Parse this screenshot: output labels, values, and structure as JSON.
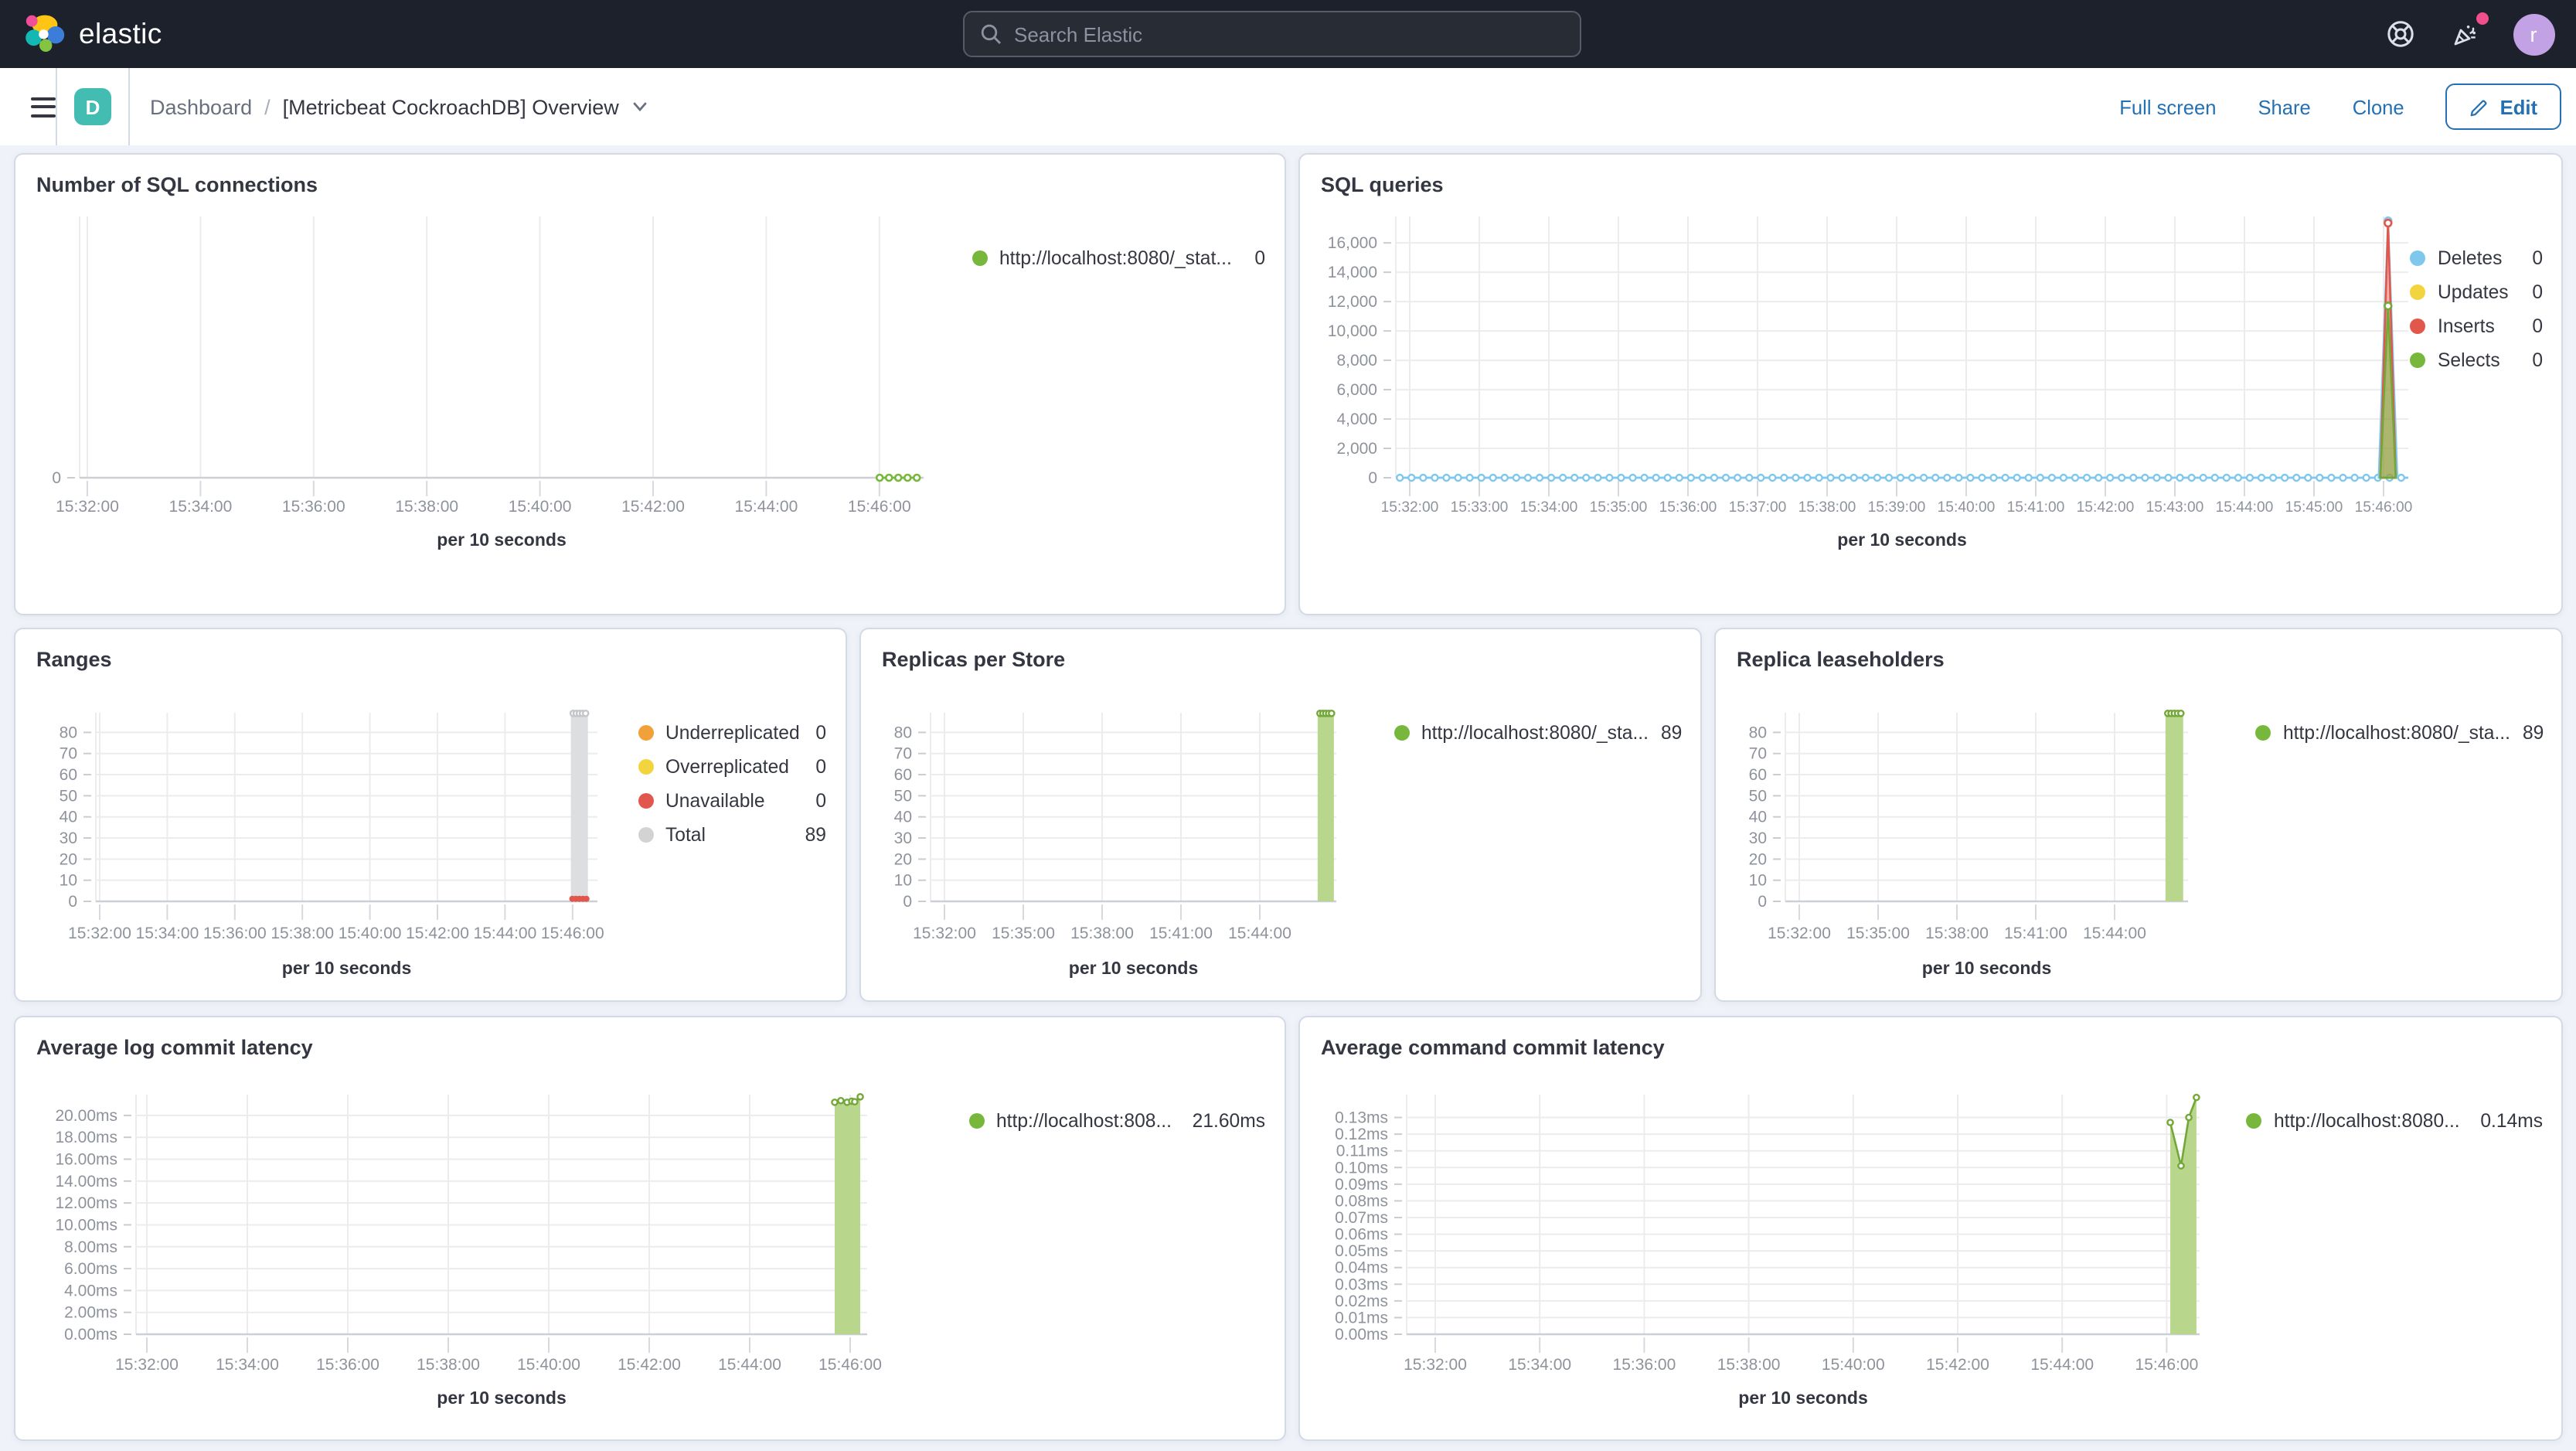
{
  "header": {
    "logo_text": "elastic",
    "search_placeholder": "Search Elastic",
    "avatar_letter": "r"
  },
  "toolbar": {
    "dashboard_badge": "D",
    "breadcrumb_root": "Dashboard",
    "breadcrumb_sep": "/",
    "breadcrumb_current": "[Metricbeat CockroachDB] Overview",
    "action_fullscreen": "Full screen",
    "action_share": "Share",
    "action_clone": "Clone",
    "edit_label": "Edit"
  },
  "panels": [
    {
      "title": "Number of SQL connections",
      "legend": [
        {
          "label": "http://localhost:8080/_stat...",
          "value": "0",
          "color": "#77b83c"
        }
      ],
      "chart": {
        "type": "line",
        "x_label": "per 10 seconds",
        "x_ticks": [
          "15:32:00",
          "15:34:00",
          "15:36:00",
          "15:38:00",
          "15:40:00",
          "15:42:00",
          "15:44:00",
          "15:46:00"
        ],
        "y_ticks": [
          {
            "label": "0",
            "v": 0
          }
        ],
        "ylim": [
          0,
          8
        ],
        "series": [
          {
            "name": "connections",
            "type": "dotline",
            "color": "#77b83c",
            "points": [
              [
                0.948,
                0
              ],
              [
                0.959,
                0
              ],
              [
                0.97,
                0
              ],
              [
                0.981,
                0
              ],
              [
                0.992,
                0
              ]
            ]
          }
        ]
      }
    },
    {
      "title": "SQL queries",
      "legend": [
        {
          "label": "Deletes",
          "value": "0",
          "color": "#7fc8ec"
        },
        {
          "label": "Updates",
          "value": "0",
          "color": "#f2d53e"
        },
        {
          "label": "Inserts",
          "value": "0",
          "color": "#e2574b"
        },
        {
          "label": "Selects",
          "value": "0",
          "color": "#77b83c"
        }
      ],
      "chart": {
        "type": "area",
        "x_label": "per 10 seconds",
        "x_ticks": [
          "15:32:00",
          "15:33:00",
          "15:34:00",
          "15:35:00",
          "15:36:00",
          "15:37:00",
          "15:38:00",
          "15:39:00",
          "15:40:00",
          "15:41:00",
          "15:42:00",
          "15:43:00",
          "15:44:00",
          "15:45:00",
          "15:46:00"
        ],
        "y_ticks": [
          {
            "label": "0",
            "v": 0
          },
          {
            "label": "2,000",
            "v": 2000
          },
          {
            "label": "4,000",
            "v": 4000
          },
          {
            "label": "6,000",
            "v": 6000
          },
          {
            "label": "8,000",
            "v": 8000
          },
          {
            "label": "10,000",
            "v": 10000
          },
          {
            "label": "12,000",
            "v": 12000
          },
          {
            "label": "14,000",
            "v": 14000
          },
          {
            "label": "16,000",
            "v": 16000
          }
        ],
        "ylim": [
          0,
          17800
        ],
        "series": [
          {
            "name": "Deletes baseline",
            "type": "zeroline",
            "color": "#7fc8ec",
            "step": 0.0115
          },
          {
            "name": "Deletes spike",
            "type": "spike",
            "cx": 0.98,
            "hw": 0.0092,
            "peak": 17500,
            "color": "#7fc8ec",
            "fill": "none"
          },
          {
            "name": "Inserts spike",
            "type": "spike",
            "cx": 0.98,
            "hw": 0.0076,
            "peak": 17350,
            "color": "#e2574b",
            "fill": "rgba(226,87,75,0.45)"
          },
          {
            "name": "Selects spike",
            "type": "spike",
            "cx": 0.98,
            "hw": 0.0076,
            "peak": 11700,
            "color": "#73a839",
            "fill": "rgba(126,184,68,0.6)"
          }
        ]
      }
    },
    {
      "title": "Ranges",
      "legend": [
        {
          "label": "Underreplicated",
          "value": "0",
          "color": "#f0a13a"
        },
        {
          "label": "Overreplicated",
          "value": "0",
          "color": "#f2d53e"
        },
        {
          "label": "Unavailable",
          "value": "0",
          "color": "#e2574b"
        },
        {
          "label": "Total",
          "value": "89",
          "color": "#d3d3d3"
        }
      ],
      "chart": {
        "type": "bar",
        "x_label": "per 10 seconds",
        "x_ticks": [
          "15:32:00",
          "15:34:00",
          "15:36:00",
          "15:38:00",
          "15:40:00",
          "15:42:00",
          "15:44:00",
          "15:46:00"
        ],
        "y_ticks": [
          {
            "label": "0",
            "v": 0
          },
          {
            "label": "10",
            "v": 10
          },
          {
            "label": "20",
            "v": 20
          },
          {
            "label": "30",
            "v": 30
          },
          {
            "label": "40",
            "v": 40
          },
          {
            "label": "50",
            "v": 50
          },
          {
            "label": "60",
            "v": 60
          },
          {
            "label": "70",
            "v": 70
          },
          {
            "label": "80",
            "v": 80
          }
        ],
        "ylim": [
          0,
          89.3
        ],
        "series": [
          {
            "name": "Total",
            "type": "bar",
            "cx": 0.964,
            "hw": 0.017,
            "top": 89,
            "fill": "#dcdee0",
            "markerColor": "#c4c6c9",
            "markers": 5
          },
          {
            "name": "Unavailable",
            "type": "dots",
            "cx": 0.964,
            "hw": 0.014,
            "n": 5,
            "y": 1.2,
            "color": "#e2574b"
          }
        ]
      }
    },
    {
      "title": "Replicas per Store",
      "legend": [
        {
          "label": "http://localhost:8080/_sta...",
          "value": "89",
          "color": "#77b83c"
        }
      ],
      "chart": {
        "type": "bar",
        "x_label": "per 10 seconds",
        "x_ticks": [
          "15:32:00",
          "15:35:00",
          "15:38:00",
          "15:41:00",
          "15:44:00"
        ],
        "y_ticks": [
          {
            "label": "0",
            "v": 0
          },
          {
            "label": "10",
            "v": 10
          },
          {
            "label": "20",
            "v": 20
          },
          {
            "label": "30",
            "v": 30
          },
          {
            "label": "40",
            "v": 40
          },
          {
            "label": "50",
            "v": 50
          },
          {
            "label": "60",
            "v": 60
          },
          {
            "label": "70",
            "v": 70
          },
          {
            "label": "80",
            "v": 80
          }
        ],
        "ylim": [
          0,
          89.3
        ],
        "series": [
          {
            "name": "replicas",
            "type": "bar",
            "cx": 0.974,
            "hw": 0.02,
            "top": 89,
            "fill": "#b8d78d",
            "markerColor": "#73a839",
            "markers": 5
          }
        ]
      }
    },
    {
      "title": "Replica leaseholders",
      "legend": [
        {
          "label": "http://localhost:8080/_sta...",
          "value": "89",
          "color": "#77b83c"
        }
      ],
      "chart": {
        "type": "bar",
        "x_label": "per 10 seconds",
        "x_ticks": [
          "15:32:00",
          "15:35:00",
          "15:38:00",
          "15:41:00",
          "15:44:00"
        ],
        "y_ticks": [
          {
            "label": "0",
            "v": 0
          },
          {
            "label": "10",
            "v": 10
          },
          {
            "label": "20",
            "v": 20
          },
          {
            "label": "30",
            "v": 30
          },
          {
            "label": "40",
            "v": 40
          },
          {
            "label": "50",
            "v": 50
          },
          {
            "label": "60",
            "v": 60
          },
          {
            "label": "70",
            "v": 70
          },
          {
            "label": "80",
            "v": 80
          }
        ],
        "ylim": [
          0,
          89.3
        ],
        "series": [
          {
            "name": "leaseholders",
            "type": "bar",
            "cx": 0.966,
            "hw": 0.022,
            "top": 89,
            "fill": "#b8d78d",
            "markerColor": "#73a839",
            "markers": 5
          }
        ]
      }
    },
    {
      "title": "Average log commit latency",
      "legend": [
        {
          "label": "http://localhost:808...",
          "value": "21.60ms",
          "color": "#77b83c"
        }
      ],
      "chart": {
        "type": "area",
        "x_label": "per 10 seconds",
        "x_ticks": [
          "15:32:00",
          "15:34:00",
          "15:36:00",
          "15:38:00",
          "15:40:00",
          "15:42:00",
          "15:44:00",
          "15:46:00"
        ],
        "y_ticks": [
          {
            "label": "0.00ms",
            "v": 0
          },
          {
            "label": "2.00ms",
            "v": 2
          },
          {
            "label": "4.00ms",
            "v": 4
          },
          {
            "label": "6.00ms",
            "v": 6
          },
          {
            "label": "8.00ms",
            "v": 8
          },
          {
            "label": "10.00ms",
            "v": 10
          },
          {
            "label": "12.00ms",
            "v": 12
          },
          {
            "label": "14.00ms",
            "v": 14
          },
          {
            "label": "16.00ms",
            "v": 16
          },
          {
            "label": "18.00ms",
            "v": 18
          },
          {
            "label": "20.00ms",
            "v": 20
          }
        ],
        "ylim": [
          0,
          21.9
        ],
        "series": [
          {
            "name": "log commit latency",
            "type": "area",
            "color": "#73a839",
            "fill": "#b8d78d",
            "points": [
              [
                0.9556,
                21.2
              ],
              [
                0.964,
                21.35
              ],
              [
                0.9725,
                21.2
              ],
              [
                0.9789,
                21.3
              ],
              [
                0.983,
                21.25
              ],
              [
                0.9905,
                21.7
              ]
            ]
          }
        ]
      }
    },
    {
      "title": "Average command commit latency",
      "legend": [
        {
          "label": "http://localhost:8080...",
          "value": "0.14ms",
          "color": "#77b83c"
        }
      ],
      "chart": {
        "type": "area",
        "x_label": "per 10 seconds",
        "x_ticks": [
          "15:32:00",
          "15:34:00",
          "15:36:00",
          "15:38:00",
          "15:40:00",
          "15:42:00",
          "15:44:00",
          "15:46:00"
        ],
        "y_ticks": [
          {
            "label": "0.00ms",
            "v": 0
          },
          {
            "label": "0.01ms",
            "v": 0.01
          },
          {
            "label": "0.02ms",
            "v": 0.02
          },
          {
            "label": "0.03ms",
            "v": 0.03
          },
          {
            "label": "0.04ms",
            "v": 0.04
          },
          {
            "label": "0.05ms",
            "v": 0.05
          },
          {
            "label": "0.06ms",
            "v": 0.06
          },
          {
            "label": "0.07ms",
            "v": 0.07
          },
          {
            "label": "0.08ms",
            "v": 0.08
          },
          {
            "label": "0.09ms",
            "v": 0.09
          },
          {
            "label": "0.10ms",
            "v": 0.1
          },
          {
            "label": "0.11ms",
            "v": 0.11
          },
          {
            "label": "0.12ms",
            "v": 0.12
          },
          {
            "label": "0.13ms",
            "v": 0.13
          }
        ],
        "ylim": [
          0,
          0.1437
        ],
        "series": [
          {
            "name": "command commit latency",
            "type": "area",
            "color": "#73a839",
            "fill": "#b8d78d",
            "points": [
              [
                0.963,
                0.127
              ],
              [
                0.9766,
                0.101
              ],
              [
                0.9864,
                0.13
              ],
              [
                0.996,
                0.142
              ]
            ]
          }
        ]
      }
    }
  ]
}
